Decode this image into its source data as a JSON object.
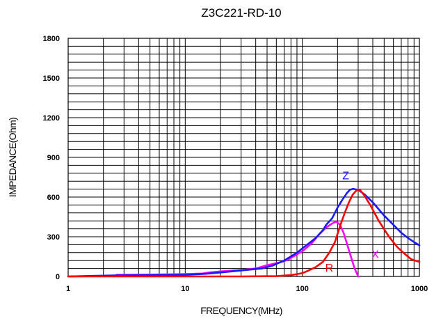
{
  "chart_data": {
    "type": "line",
    "title": "Z3C221-RD-10",
    "xlabel": "FREQUENCY(MHz)",
    "ylabel": "IMPEDANCE(Ohm)",
    "x_scale": "log",
    "xlim": [
      1,
      1000
    ],
    "ylim": [
      0,
      1800
    ],
    "x_ticks": [
      1,
      10,
      100,
      1000
    ],
    "x_tick_labels": [
      "1",
      "10",
      "100",
      "1000"
    ],
    "y_ticks": [
      0,
      300,
      600,
      900,
      1200,
      1500,
      1800
    ],
    "y_tick_labels": [
      "0",
      "300",
      "600",
      "900",
      "1200",
      "1500",
      "1800"
    ],
    "grid": true,
    "series": [
      {
        "name": "Z",
        "color": "#1a1aff",
        "points": [
          [
            1,
            0
          ],
          [
            2.5,
            8
          ],
          [
            10,
            12
          ],
          [
            15,
            20
          ],
          [
            20,
            30
          ],
          [
            30,
            45
          ],
          [
            45,
            60
          ],
          [
            55,
            80
          ],
          [
            70,
            120
          ],
          [
            90,
            180
          ],
          [
            110,
            240
          ],
          [
            130,
            290
          ],
          [
            150,
            350
          ],
          [
            160,
            390
          ],
          [
            180,
            440
          ],
          [
            200,
            520
          ],
          [
            220,
            580
          ],
          [
            240,
            630
          ],
          [
            255,
            655
          ],
          [
            270,
            662
          ],
          [
            300,
            655
          ],
          [
            340,
            620
          ],
          [
            400,
            560
          ],
          [
            500,
            460
          ],
          [
            600,
            390
          ],
          [
            700,
            330
          ],
          [
            800,
            290
          ],
          [
            900,
            260
          ],
          [
            1000,
            235
          ]
        ]
      },
      {
        "name": "R",
        "color": "#ff0000",
        "points": [
          [
            1,
            0
          ],
          [
            10,
            0
          ],
          [
            30,
            0
          ],
          [
            60,
            2
          ],
          [
            80,
            10
          ],
          [
            100,
            25
          ],
          [
            110,
            40
          ],
          [
            130,
            70
          ],
          [
            150,
            110
          ],
          [
            170,
            180
          ],
          [
            190,
            260
          ],
          [
            210,
            380
          ],
          [
            230,
            480
          ],
          [
            250,
            560
          ],
          [
            270,
            620
          ],
          [
            290,
            650
          ],
          [
            310,
            655
          ],
          [
            340,
            610
          ],
          [
            380,
            540
          ],
          [
            450,
            420
          ],
          [
            550,
            300
          ],
          [
            650,
            220
          ],
          [
            750,
            170
          ],
          [
            850,
            130
          ],
          [
            1000,
            110
          ]
        ]
      },
      {
        "name": "X",
        "color": "#ff00ff",
        "points": [
          [
            1,
            0
          ],
          [
            2.5,
            3
          ],
          [
            2.6,
            12
          ],
          [
            5,
            14
          ],
          [
            10,
            18
          ],
          [
            14,
            22
          ],
          [
            16,
            30
          ],
          [
            20,
            38
          ],
          [
            30,
            48
          ],
          [
            40,
            60
          ],
          [
            50,
            85
          ],
          [
            60,
            100
          ],
          [
            70,
            115
          ],
          [
            80,
            140
          ],
          [
            100,
            190
          ],
          [
            120,
            250
          ],
          [
            140,
            320
          ],
          [
            160,
            370
          ],
          [
            180,
            400
          ],
          [
            195,
            415
          ],
          [
            210,
            390
          ],
          [
            225,
            330
          ],
          [
            240,
            250
          ],
          [
            260,
            150
          ],
          [
            280,
            60
          ],
          [
            300,
            0
          ]
        ]
      }
    ]
  },
  "colors": {
    "grid": "#000000",
    "background": "#ffffff"
  }
}
